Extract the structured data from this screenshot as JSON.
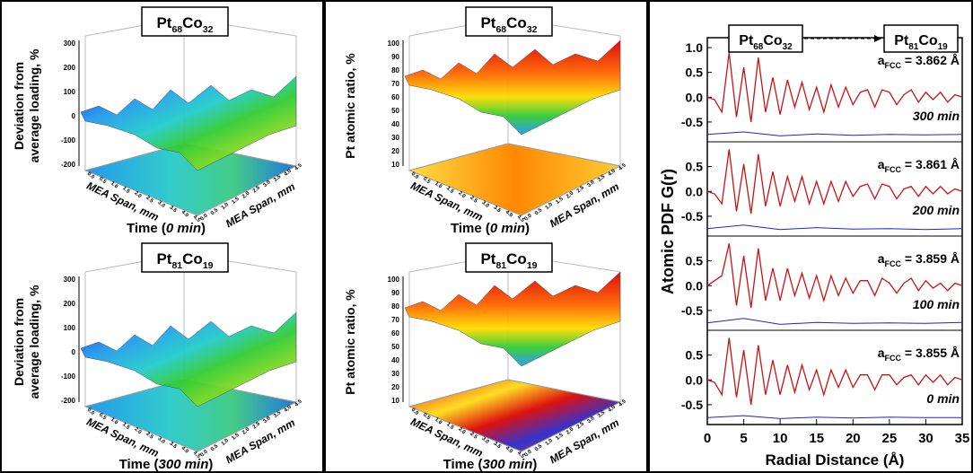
{
  "span_ticks": [
    "0.0",
    "0.5",
    "1.0",
    "1.5",
    "2.0",
    "2.5",
    "3.0",
    "3.5",
    "4.0",
    "4.5"
  ],
  "surface_panels": [
    {
      "title": [
        "Pt",
        "68",
        "Co",
        "32"
      ],
      "z_label": [
        "Deviation from",
        "average loading, %"
      ],
      "zticks": [
        300,
        200,
        100,
        0,
        -100,
        -200
      ],
      "x_label": "MEA Span, mm",
      "y_label": "MEA Span, mm",
      "time": [
        "Time (",
        "0 min",
        ")"
      ]
    },
    {
      "title": [
        "Pt",
        "81",
        "Co",
        "19"
      ],
      "z_label": [
        "Deviation from",
        "average loading, %"
      ],
      "zticks": [
        300,
        200,
        100,
        0,
        -100,
        -200
      ],
      "x_label": "MEA Span, mm",
      "y_label": "MEA Span, mm",
      "time": [
        "Time (",
        "300 min",
        ")"
      ]
    },
    {
      "title": [
        "Pt",
        "68",
        "Co",
        "32"
      ],
      "z_label": [
        "Pt atomic ratio, %"
      ],
      "zticks": [
        100,
        90,
        80,
        70,
        60,
        50,
        40,
        30,
        20,
        10
      ],
      "x_label": "MEA Span, mm",
      "y_label": "MEA Span, mm",
      "time": [
        "Time (",
        "0 min",
        ")"
      ]
    },
    {
      "title": [
        "Pt",
        "81",
        "Co",
        "19"
      ],
      "z_label": [
        "Pt atomic ratio, %"
      ],
      "zticks": [
        100,
        90,
        80,
        70,
        60,
        50,
        40,
        30,
        20,
        10
      ],
      "x_label": "MEA Span, mm",
      "y_label": "MEA Span, mm",
      "time": [
        "Time (",
        "300 min",
        ")"
      ]
    }
  ],
  "chart_data": {
    "type": "line",
    "ylabel": "Atomic PDF G(r)",
    "xlabel": "Radial Distance (Å)",
    "from_label": [
      "Pt",
      "68",
      "Co",
      "32"
    ],
    "to_label": [
      "Pt",
      "81",
      "Co",
      "19"
    ],
    "xlim": [
      0,
      35
    ],
    "xticks": [
      0,
      5,
      10,
      15,
      20,
      25,
      30,
      35
    ],
    "x": [
      0,
      1,
      2,
      3,
      4,
      5,
      6,
      7,
      8,
      9,
      10,
      11,
      12,
      13,
      14,
      15,
      16,
      17,
      18,
      19,
      20,
      21,
      22,
      23,
      24,
      25,
      26,
      27,
      28,
      29,
      30,
      31,
      32,
      33,
      34,
      35
    ],
    "diff_x": [
      0,
      5,
      10,
      15,
      20,
      25,
      30,
      35
    ],
    "panels": [
      {
        "lattice": [
          "a",
          "FCC",
          " = 3.862 Å"
        ],
        "time": "300 min",
        "ylim": [
          -0.9,
          1.2
        ],
        "yticks": [
          {
            "value": 1,
            "label": "1.0"
          },
          {
            "value": 0.5,
            "label": "0.5"
          },
          {
            "value": 0,
            "label": "0.0"
          },
          {
            "value": -0.5,
            "label": "-0.5"
          }
        ],
        "fit": [
          0,
          -0.05,
          -0.3,
          0.9,
          -0.4,
          0.6,
          -0.5,
          0.8,
          -0.3,
          0.4,
          -0.35,
          0.35,
          -0.2,
          0.3,
          -0.25,
          0.2,
          -0.3,
          0.25,
          -0.2,
          0.2,
          -0.15,
          0.1,
          0.15,
          -0.2,
          0.15,
          0.1,
          -0.15,
          0.05,
          0.15,
          -0.1,
          0.1,
          -0.05,
          0.1,
          -0.1,
          0.05,
          0
        ],
        "diff": [
          -0.75,
          -0.7,
          -0.78,
          -0.74,
          -0.77,
          -0.75,
          -0.76,
          -0.75
        ]
      },
      {
        "lattice": [
          "a",
          "FCC",
          " = 3.861 Å"
        ],
        "time": "200 min",
        "ylim": [
          -0.9,
          1.0
        ],
        "yticks": [
          {
            "value": 0.5,
            "label": "0.5"
          },
          {
            "value": 0,
            "label": "0.0"
          },
          {
            "value": -0.5,
            "label": "-0.5"
          }
        ],
        "fit": [
          0,
          -0.05,
          -0.25,
          0.85,
          -0.4,
          0.55,
          -0.45,
          0.75,
          -0.3,
          0.4,
          -0.3,
          0.3,
          -0.2,
          0.3,
          -0.25,
          0.2,
          -0.25,
          0.2,
          -0.2,
          0.2,
          -0.1,
          0.1,
          0.15,
          -0.15,
          0.15,
          0.1,
          -0.15,
          0.05,
          0.1,
          -0.1,
          0.1,
          -0.05,
          0.1,
          -0.05,
          0.05,
          0
        ],
        "diff": [
          -0.75,
          -0.68,
          -0.77,
          -0.73,
          -0.76,
          -0.75,
          -0.77,
          -0.75
        ]
      },
      {
        "lattice": [
          "a",
          "FCC",
          " = 3.859 Å"
        ],
        "time": "100 min",
        "ylim": [
          -0.9,
          1.0
        ],
        "yticks": [
          {
            "value": 0.5,
            "label": "0.5"
          },
          {
            "value": 0,
            "label": "0.0"
          },
          {
            "value": -0.5,
            "label": "-0.5"
          }
        ],
        "fit": [
          0,
          0.1,
          0.2,
          0.85,
          -0.4,
          0.6,
          -0.45,
          0.75,
          -0.3,
          0.35,
          -0.3,
          0.35,
          -0.2,
          0.25,
          -0.25,
          0.2,
          -0.3,
          0.2,
          -0.2,
          0.15,
          -0.15,
          0.1,
          0.1,
          -0.2,
          0.15,
          0.05,
          -0.15,
          0.05,
          0.15,
          -0.1,
          0.1,
          -0.05,
          0.05,
          -0.1,
          0.05,
          0
        ],
        "diff": [
          -0.75,
          -0.66,
          -0.78,
          -0.74,
          -0.76,
          -0.75,
          -0.76,
          -0.74
        ]
      },
      {
        "lattice": [
          "a",
          "FCC",
          " = 3.855 Å"
        ],
        "time": "0 min",
        "ylim": [
          -0.9,
          1.0
        ],
        "yticks": [
          {
            "value": 0.5,
            "label": "0.5"
          },
          {
            "value": 0,
            "label": "0.0"
          },
          {
            "value": -0.5,
            "label": "-0.5"
          }
        ],
        "fit": [
          0,
          -0.05,
          -0.3,
          0.85,
          -0.35,
          0.6,
          -0.5,
          0.7,
          -0.3,
          0.4,
          -0.3,
          0.3,
          -0.25,
          0.3,
          -0.2,
          0.2,
          -0.3,
          0.2,
          -0.15,
          0.2,
          -0.15,
          0.1,
          0.1,
          -0.2,
          0.1,
          0.1,
          -0.1,
          0.05,
          0.1,
          -0.1,
          0.1,
          -0.05,
          0.1,
          -0.1,
          0.05,
          0
        ],
        "diff": [
          -0.76,
          -0.72,
          -0.78,
          -0.75,
          -0.77,
          -0.75,
          -0.76,
          -0.76
        ]
      }
    ]
  }
}
